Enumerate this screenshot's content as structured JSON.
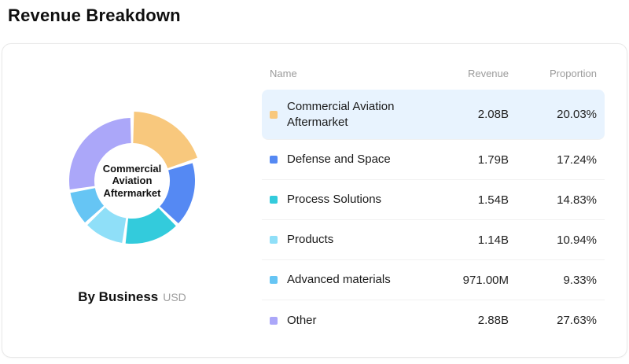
{
  "page": {
    "title": "Revenue Breakdown"
  },
  "card": {
    "chart": {
      "center_label": "Commercial Aviation Aftermarket",
      "caption": "By Business",
      "caption_unit": "USD"
    },
    "table": {
      "headers": {
        "name": "Name",
        "revenue": "Revenue",
        "proportion": "Proportion"
      },
      "rows": [
        {
          "name": "Commercial Aviation Aftermarket",
          "revenue": "2.08B",
          "proportion": "20.03%",
          "color": "#F8C87D",
          "highlighted": true
        },
        {
          "name": "Defense and Space",
          "revenue": "1.79B",
          "proportion": "17.24%",
          "color": "#5589F3",
          "highlighted": false
        },
        {
          "name": "Process Solutions",
          "revenue": "1.54B",
          "proportion": "14.83%",
          "color": "#33CBDC",
          "highlighted": false
        },
        {
          "name": "Products",
          "revenue": "1.14B",
          "proportion": "10.94%",
          "color": "#8FDFF8",
          "highlighted": false
        },
        {
          "name": "Advanced materials",
          "revenue": "971.00M",
          "proportion": "9.33%",
          "color": "#66C5F4",
          "highlighted": false
        },
        {
          "name": "Other",
          "revenue": "2.88B",
          "proportion": "27.63%",
          "color": "#ABA7F9",
          "highlighted": false
        }
      ]
    }
  },
  "chart_data": {
    "type": "pie",
    "donut": true,
    "title": "By Business",
    "unit": "USD",
    "categories": [
      "Commercial Aviation Aftermarket",
      "Defense and Space",
      "Process Solutions",
      "Products",
      "Advanced materials",
      "Other"
    ],
    "values": [
      20.03,
      17.24,
      14.83,
      10.94,
      9.33,
      27.63
    ],
    "revenues": [
      "2.08B",
      "1.79B",
      "1.54B",
      "1.14B",
      "971.00M",
      "2.88B"
    ],
    "colors": [
      "#F8C87D",
      "#5589F3",
      "#33CBDC",
      "#8FDFF8",
      "#66C5F4",
      "#ABA7F9"
    ],
    "start_angle_deg": 0,
    "clockwise": true,
    "highlighted_index": 0,
    "center_label": "Commercial Aviation Aftermarket",
    "legend_position": "right-table"
  }
}
